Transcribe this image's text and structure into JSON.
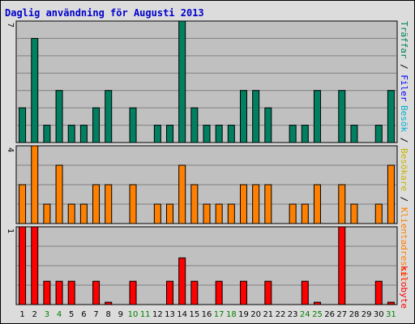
{
  "title": "Daglig användning för Augusti 2013",
  "colors": {
    "plot_bg": "#c0c0c0",
    "frame_bg": "#dcdcdc",
    "grid": "#808080",
    "traffar": "#00805c",
    "filer": "#0000ff",
    "besokare": "#f8e880",
    "besok": "#00b0d0",
    "kb_bar": "#ff0000",
    "pages_bar": "#ff8000",
    "hits_bar": "#008060",
    "weekend_label": "#008000",
    "label": "#000000"
  },
  "legend": {
    "top_sep1": "/",
    "top_item_traffar": "Träffar",
    "top_item_filer": "Filer",
    "top_item_besokare": "Besökare",
    "top_item_besok": "Besök",
    "middle_item_sep": "/",
    "middle_item_klient": "Klientadresser",
    "middle_item_besok": "Besökare",
    "bottom_item_kb": "kilobyte"
  },
  "chart_data": [
    {
      "type": "bar",
      "panel": "top",
      "ymax_label": "7",
      "ylim": [
        0,
        7
      ],
      "categories": [
        "1",
        "2",
        "3",
        "4",
        "5",
        "6",
        "7",
        "8",
        "9",
        "10",
        "11",
        "12",
        "13",
        "14",
        "15",
        "16",
        "17",
        "18",
        "19",
        "20",
        "21",
        "22",
        "23",
        "24",
        "25",
        "26",
        "27",
        "28",
        "29",
        "30",
        "31"
      ],
      "weekend_days": [
        3,
        4,
        10,
        11,
        17,
        18,
        24,
        25,
        31
      ],
      "series": [
        {
          "name": "Träffar",
          "values": [
            2,
            6,
            1,
            3,
            1,
            1,
            2,
            3,
            0,
            2,
            0,
            1,
            1,
            7,
            2,
            1,
            1,
            1,
            3,
            3,
            2,
            0,
            1,
            1,
            3,
            0,
            3,
            1,
            0,
            1,
            3
          ]
        }
      ]
    },
    {
      "type": "bar",
      "panel": "middle",
      "ymax_label": "4",
      "ylim": [
        0,
        4
      ],
      "series": [
        {
          "name": "Klientadresser",
          "values": [
            2,
            4,
            1,
            3,
            1,
            1,
            2,
            2,
            0,
            2,
            0,
            1,
            1,
            3,
            2,
            1,
            1,
            1,
            2,
            2,
            2,
            0,
            1,
            1,
            2,
            0,
            2,
            1,
            0,
            1,
            3
          ]
        }
      ]
    },
    {
      "type": "bar",
      "panel": "bottom",
      "ymax_label": "1",
      "ylim": [
        0,
        1
      ],
      "series": [
        {
          "name": "kilobyte",
          "values": [
            1,
            1,
            0.3,
            0.3,
            0.3,
            0,
            0.3,
            0.03,
            0,
            0.3,
            0,
            0,
            0.3,
            0.6,
            0.3,
            0,
            0.3,
            0,
            0.3,
            0,
            0.3,
            0,
            0,
            0.3,
            0.03,
            0,
            1,
            0,
            0,
            0.3,
            0.03
          ]
        }
      ]
    }
  ]
}
